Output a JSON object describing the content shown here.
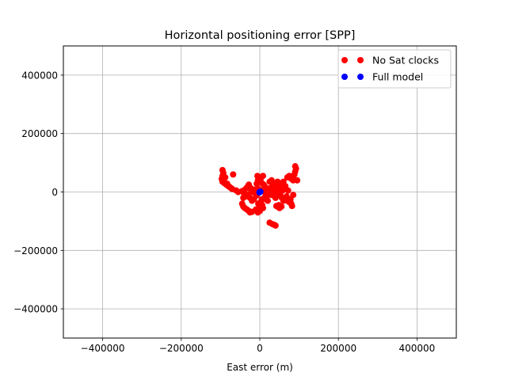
{
  "chart_data": {
    "type": "scatter",
    "title": "Horizontal positioning error [SPP]",
    "xlabel": "East error (m)",
    "ylabel": "",
    "xlim": [
      -500000,
      500000
    ],
    "ylim": [
      -500000,
      500000
    ],
    "grid": true,
    "legend_position": "top-right",
    "x_ticks": [
      -400000,
      -200000,
      0,
      200000,
      400000
    ],
    "y_ticks": [
      -400000,
      -200000,
      0,
      200000,
      400000
    ],
    "x_tick_labels": [
      "−400000",
      "−200000",
      "0",
      "200000",
      "400000"
    ],
    "y_tick_labels": [
      "−400000",
      "−200000",
      "0",
      "200000",
      "400000"
    ],
    "series": [
      {
        "name": "No Sat clocks",
        "color": "#ff0000",
        "points": [
          [
            -95000,
            75000
          ],
          [
            -93000,
            65000
          ],
          [
            -95000,
            55000
          ],
          [
            -97000,
            45000
          ],
          [
            -95000,
            35000
          ],
          [
            -90000,
            30000
          ],
          [
            -85000,
            25000
          ],
          [
            -80000,
            20000
          ],
          [
            -75000,
            15000
          ],
          [
            -70000,
            10000
          ],
          [
            -88000,
            50000
          ],
          [
            -92000,
            40000
          ],
          [
            -83000,
            28000
          ],
          [
            -78000,
            18000
          ],
          [
            -72000,
            12000
          ],
          [
            -68000,
            60000
          ],
          [
            -60000,
            5000
          ],
          [
            -55000,
            0
          ],
          [
            -45000,
            3000
          ],
          [
            -40000,
            -5000
          ],
          [
            -35000,
            -15000
          ],
          [
            -30000,
            -10000
          ],
          [
            -25000,
            -20000
          ],
          [
            -20000,
            -30000
          ],
          [
            -15000,
            -25000
          ],
          [
            -45000,
            -40000
          ],
          [
            -42000,
            -50000
          ],
          [
            -38000,
            -55000
          ],
          [
            -33000,
            -60000
          ],
          [
            -28000,
            -65000
          ],
          [
            -25000,
            -70000
          ],
          [
            -20000,
            -68000
          ],
          [
            -10000,
            -60000
          ],
          [
            -5000,
            -70000
          ],
          [
            0,
            -65000
          ],
          [
            -30000,
            20000
          ],
          [
            -25000,
            15000
          ],
          [
            -20000,
            10000
          ],
          [
            -15000,
            5000
          ],
          [
            -10000,
            8000
          ],
          [
            -5000,
            0
          ],
          [
            -3000,
            10000
          ],
          [
            -8000,
            -12000
          ],
          [
            -12000,
            -5000
          ],
          [
            -18000,
            0
          ],
          [
            -22000,
            5000
          ],
          [
            -28000,
            25000
          ],
          [
            -33000,
            15000
          ],
          [
            -38000,
            8000
          ],
          [
            -42000,
            -20000
          ],
          [
            -6000,
            55000
          ],
          [
            -2000,
            50000
          ],
          [
            3000,
            48000
          ],
          [
            8000,
            55000
          ],
          [
            -5000,
            40000
          ],
          [
            0,
            35000
          ],
          [
            5000,
            30000
          ],
          [
            -8000,
            28000
          ],
          [
            10000,
            25000
          ],
          [
            12000,
            20000
          ],
          [
            10000,
            10000
          ],
          [
            15000,
            5000
          ],
          [
            20000,
            0
          ],
          [
            25000,
            -5000
          ],
          [
            30000,
            -10000
          ],
          [
            18000,
            -15000
          ],
          [
            12000,
            -20000
          ],
          [
            5000,
            -25000
          ],
          [
            2000,
            -35000
          ],
          [
            6000,
            -45000
          ],
          [
            8000,
            -55000
          ],
          [
            0,
            -48000
          ],
          [
            -4000,
            -40000
          ],
          [
            15000,
            -8000
          ],
          [
            22000,
            12000
          ],
          [
            25000,
            35000
          ],
          [
            30000,
            40000
          ],
          [
            35000,
            30000
          ],
          [
            40000,
            20000
          ],
          [
            45000,
            10000
          ],
          [
            32000,
            5000
          ],
          [
            28000,
            -2000
          ],
          [
            35000,
            -12000
          ],
          [
            40000,
            -20000
          ],
          [
            42000,
            0
          ],
          [
            45000,
            -50000
          ],
          [
            50000,
            -55000
          ],
          [
            48000,
            -45000
          ],
          [
            42000,
            -48000
          ],
          [
            55000,
            -50000
          ],
          [
            50000,
            15000
          ],
          [
            55000,
            25000
          ],
          [
            60000,
            35000
          ],
          [
            65000,
            20000
          ],
          [
            58000,
            5000
          ],
          [
            62000,
            10000
          ],
          [
            52000,
            -10000
          ],
          [
            56000,
            -20000
          ],
          [
            60000,
            -30000
          ],
          [
            48000,
            -5000
          ],
          [
            70000,
            50000
          ],
          [
            75000,
            55000
          ],
          [
            80000,
            45000
          ],
          [
            85000,
            50000
          ],
          [
            88000,
            60000
          ],
          [
            90000,
            70000
          ],
          [
            92000,
            80000
          ],
          [
            90000,
            88000
          ],
          [
            85000,
            40000
          ],
          [
            95000,
            40000
          ],
          [
            70000,
            -30000
          ],
          [
            75000,
            -35000
          ],
          [
            80000,
            -40000
          ],
          [
            82000,
            -48000
          ],
          [
            78000,
            -25000
          ],
          [
            85000,
            -10000
          ],
          [
            72000,
            5000
          ],
          [
            68000,
            -15000
          ],
          [
            25000,
            -105000
          ],
          [
            32000,
            -110000
          ],
          [
            40000,
            -115000
          ],
          [
            36000,
            -112000
          ],
          [
            15000,
            -25000
          ],
          [
            20000,
            -30000
          ],
          [
            30000,
            15000
          ],
          [
            35000,
            25000
          ],
          [
            45000,
            35000
          ],
          [
            50000,
            30000
          ],
          [
            38000,
            10000
          ],
          [
            42000,
            15000
          ]
        ]
      },
      {
        "name": "Full model",
        "color": "#0000ff",
        "points": [
          [
            0,
            0
          ],
          [
            1500,
            1000
          ],
          [
            -1000,
            -1500
          ]
        ]
      }
    ]
  }
}
